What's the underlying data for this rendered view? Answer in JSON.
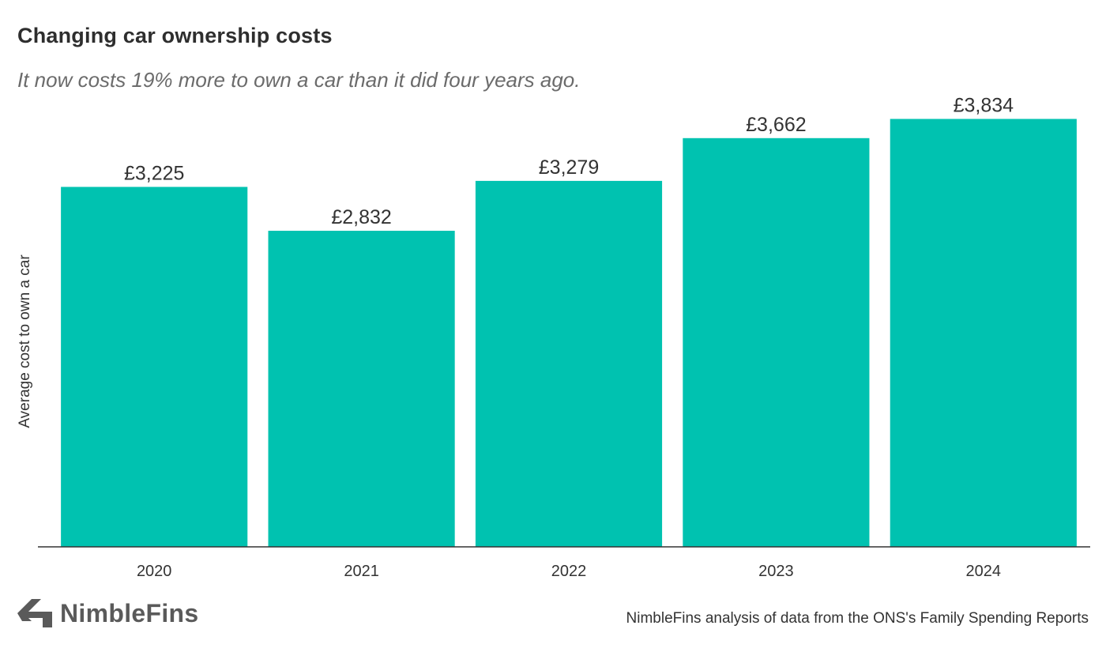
{
  "header": {
    "title": "Changing car ownership costs",
    "subtitle": "It now costs 19% more to own a car than it did four years ago."
  },
  "footer": {
    "logo_text": "NimbleFins",
    "logo_icon": "chevron-left-icon",
    "source": "NimbleFins analysis of data from the ONS's Family Spending Reports"
  },
  "colors": {
    "bar": "#00c2b0",
    "axis": "#333333",
    "logo": "#5a5a5a"
  },
  "chart_data": {
    "type": "bar",
    "title": "Changing car ownership costs",
    "subtitle": "It now costs 19% more to own a car than it did four years ago.",
    "xlabel": "",
    "ylabel": "Average cost to own a car",
    "categories": [
      "2020",
      "2021",
      "2022",
      "2023",
      "2024"
    ],
    "values": [
      3225,
      2832,
      3279,
      3662,
      3834
    ],
    "data_labels": [
      "£3,225",
      "£2,832",
      "£3,279",
      "£3,662",
      "£3,834"
    ],
    "ylim": [
      0,
      4050
    ],
    "grid": false,
    "legend": "none"
  }
}
